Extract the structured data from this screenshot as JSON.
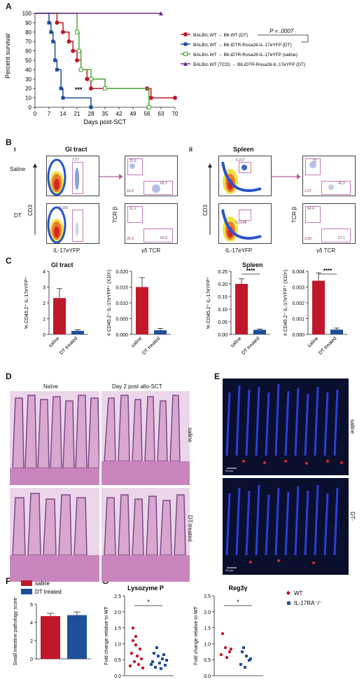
{
  "panels": {
    "A": "A",
    "B": "B",
    "C": "C",
    "D": "D",
    "E": "E",
    "F": "F",
    "G": "G"
  },
  "panelA": {
    "ylabel": "Percent survival",
    "xlabel": "Days post-SCT",
    "yticks": [
      "0",
      "10",
      "20",
      "30",
      "40",
      "50",
      "60",
      "70",
      "80",
      "90",
      "100"
    ],
    "xticks": [
      "0",
      "7",
      "14",
      "21",
      "28",
      "35",
      "42",
      "49",
      "56",
      "63",
      "70"
    ],
    "pvalue": "P = .0007",
    "stars": "***",
    "legend": [
      {
        "label": "BALB/c.WT → B6.WT (DT)",
        "color": "#c0182b"
      },
      {
        "label": "BALB/c.WT → B6.iDTR-Rosa26-IL-17eYFP (DT)",
        "color": "#1f4e9a"
      },
      {
        "label": "BALB/c.WT → B6.iDTR-Rosa26-IL-17eYFP (saline)",
        "color": "#4aa635"
      },
      {
        "label": "BALB/c.WT (TCD) → B6.iDTR-Rosa26-IL-17eYFP (DT)",
        "color": "#6a2e8a"
      }
    ]
  },
  "chart_data": [
    {
      "type": "line",
      "title": "",
      "xlabel": "Days post-SCT",
      "ylabel": "Percent survival",
      "xlim": [
        0,
        70
      ],
      "ylim": [
        0,
        100
      ],
      "series": [
        {
          "name": "BALB/c.WT → B6.WT (DT)",
          "x": [
            0,
            11,
            14,
            17,
            19,
            21,
            23,
            26,
            28,
            56,
            58,
            70
          ],
          "y": [
            100,
            90,
            80,
            70,
            60,
            50,
            40,
            30,
            20,
            20,
            10,
            10
          ]
        },
        {
          "name": "BALB/c.WT → B6.iDTR-Rosa26-IL-17eYFP (DT)",
          "x": [
            0,
            7,
            8,
            9,
            10,
            11,
            13,
            14,
            28
          ],
          "y": [
            100,
            90,
            80,
            70,
            50,
            40,
            20,
            10,
            0
          ]
        },
        {
          "name": "BALB/c.WT → B6.iDTR-Rosa26-IL-17eYFP (saline)",
          "x": [
            0,
            21,
            22,
            23,
            28,
            35,
            57
          ],
          "y": [
            100,
            80,
            60,
            40,
            30,
            20,
            0
          ]
        },
        {
          "name": "BALB/c.WT (TCD) → B6.iDTR-Rosa26-IL-17eYFP (DT)",
          "x": [
            0,
            63
          ],
          "y": [
            100,
            100
          ]
        }
      ]
    },
    {
      "type": "bar",
      "title": "GI tract",
      "ylabel": "% CD45.2⁺ IL-17eYFP⁺",
      "categories": [
        "saline",
        "DT treated"
      ],
      "values": [
        2.3,
        0.22
      ],
      "errors": [
        0.6,
        0.07
      ],
      "ylim": [
        0,
        4
      ]
    },
    {
      "type": "bar",
      "title": "GI tract",
      "ylabel": "# CD45.2⁺ IL-17eYFP⁺ (X10⁶)",
      "categories": [
        "saline",
        "DT treated"
      ],
      "values": [
        0.015,
        0.0013
      ],
      "errors": [
        0.003,
        0.0006
      ],
      "ylim": [
        0,
        0.02
      ]
    },
    {
      "type": "bar",
      "title": "Spleen",
      "ylabel": "% CD45.2⁺ IL-17eYFP⁺",
      "categories": [
        "saline",
        "DT treated"
      ],
      "values": [
        0.2,
        0.018
      ],
      "errors": [
        0.02,
        0.003
      ],
      "ylim": [
        0,
        0.25
      ]
    },
    {
      "type": "bar",
      "title": "Spleen",
      "ylabel": "# CD45.2⁺ IL-17eYFP⁺ (X10⁶)",
      "categories": [
        "saline",
        "DT treated"
      ],
      "values": [
        0.0034,
        0.0003
      ],
      "errors": [
        0.0005,
        0.0001
      ],
      "ylim": [
        0,
        0.004
      ]
    },
    {
      "type": "bar",
      "title": "",
      "ylabel": "Small intestine pathology score",
      "categories": [
        "saline",
        "DT treated"
      ],
      "values": [
        4.7,
        4.8
      ],
      "errors": [
        0.3,
        0.35
      ],
      "ylim": [
        0,
        6
      ]
    }
  ],
  "panelB": {
    "sub_i": "i",
    "sub_ii": "ii",
    "gi": "GI tract",
    "spleen": "Spleen",
    "saline": "Saline",
    "dt": "DT",
    "cd3": "CD3",
    "il17": "IL-17eYFP",
    "tcrb": "TCR β",
    "gd": "γδ TCR",
    "gates": {
      "gi_sal": "2.12",
      "gi_dt": "0.292",
      "sp_sal": "0.217",
      "sp_dt": "0.0148",
      "q_gi_sal": [
        "22.6",
        "13.5",
        "60.7"
      ],
      "q_gi_dt": [
        "11.1",
        "35.3",
        "52.8"
      ],
      "q_sp_sal": [
        "52",
        "2.37",
        "42.3"
      ],
      "q_sp_dt": [
        "64.4",
        "3.39",
        "27.1"
      ]
    },
    "ticks": [
      "10⁵",
      "10⁴",
      "10³",
      "0",
      "10³",
      "10⁴",
      "10⁵"
    ]
  },
  "panelC": {
    "gi": "GI tract",
    "spleen": "Spleen",
    "stars": "****",
    "yl1": "% CD45.2⁺ IL-17eYFP⁺",
    "yl2": "# CD45.2⁺ IL-17eYFP⁺ (X10⁶)",
    "cat1": "saline",
    "cat2": "DT treated",
    "t1": [
      "4",
      "3",
      "2",
      "1",
      "0"
    ],
    "t2": [
      "0.020",
      "0.015",
      "0.010",
      "0.005",
      "0.000"
    ],
    "t3": [
      "0.25",
      "0.20",
      "0.15",
      "0.10",
      "0.05",
      "0.00"
    ],
    "t4": [
      "0.004",
      "0.003",
      "0.002",
      "0.001",
      "0.000"
    ]
  },
  "panelD": {
    "naive": "Naïve",
    "day2": "Day 2 post allo-SCT",
    "saline": "saline",
    "dt": "DT-treated"
  },
  "panelE": {
    "saline": "saline",
    "dt": "DT-treated",
    "scale": "20 µm"
  },
  "panelF": {
    "legend1": "saline",
    "legend2": "DT treated",
    "ylabel": "Small intestine pathology score",
    "ticks": [
      "6",
      "4",
      "2",
      "0"
    ]
  },
  "panelG": {
    "lys": "Lysozyme P",
    "reg": "Reg3γ",
    "ylabel": "Fold change relative to WT",
    "star": "*",
    "lticks": [
      "2.5",
      "2.0",
      "1.5",
      "1.0",
      "0.5",
      "0.0"
    ],
    "rticks": [
      "2.5",
      "2.0",
      "1.5",
      "1.0",
      "0.5",
      "0.0"
    ],
    "legend1": "WT",
    "legend2": "IL-17RA⁻/⁻"
  },
  "colors": {
    "red": "#c0182b",
    "blue": "#1f4e9a",
    "green": "#4aa635",
    "purple": "#6a2e8a"
  }
}
